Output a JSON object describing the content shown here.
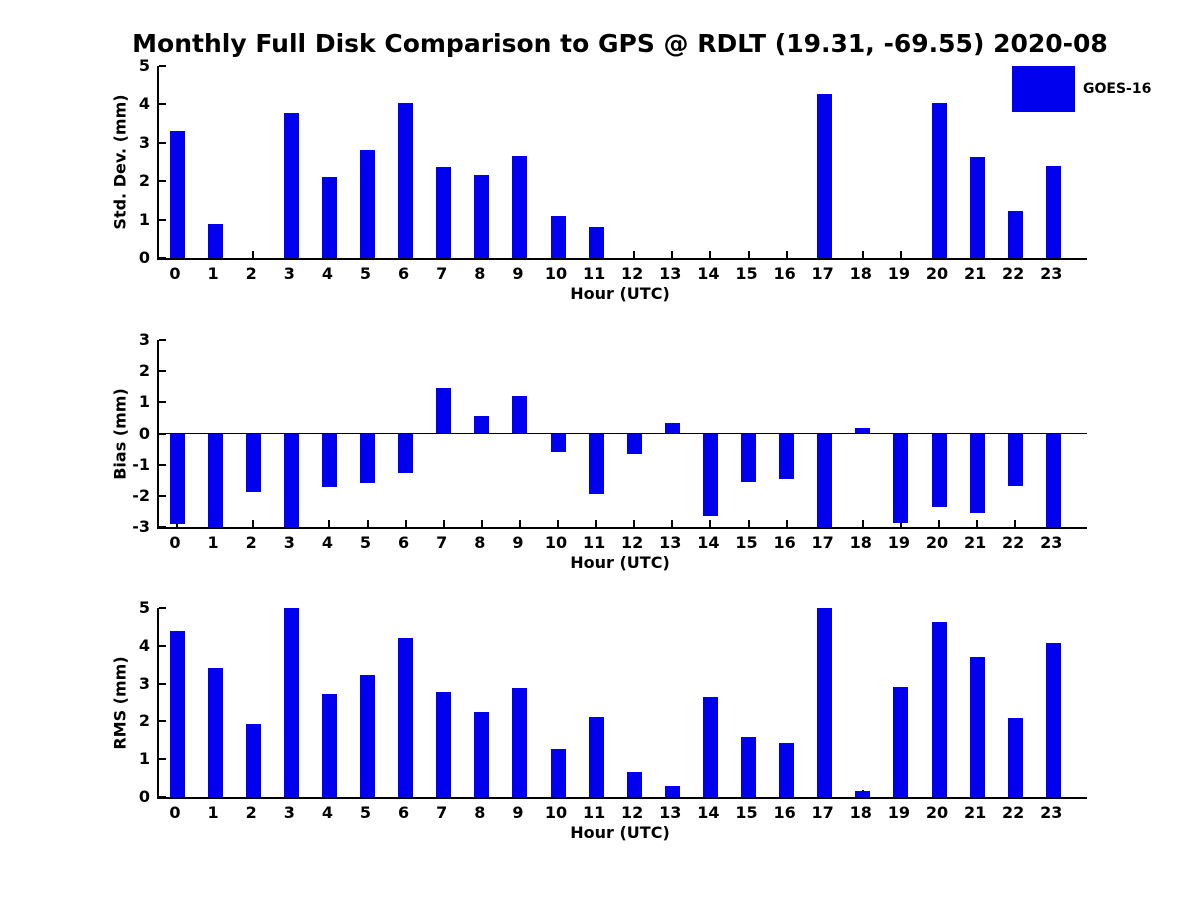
{
  "title": "Monthly Full Disk Comparison to GPS @ RDLT (19.31, -69.55) 2020-08",
  "legend": {
    "label": "GOES-16",
    "swatch_color": "#0000ee"
  },
  "colors": {
    "bar": "#0000ee",
    "axis": "#000000",
    "text": "#000000",
    "background": "#ffffff"
  },
  "chart_data": [
    {
      "type": "bar",
      "series_name": "GOES-16",
      "ylabel": "Std. Dev. (mm)",
      "xlabel": "Hour (UTC)",
      "categories": [
        "0",
        "1",
        "2",
        "3",
        "4",
        "5",
        "6",
        "7",
        "8",
        "9",
        "10",
        "11",
        "12",
        "13",
        "14",
        "15",
        "16",
        "17",
        "18",
        "19",
        "20",
        "21",
        "22",
        "23"
      ],
      "values": [
        3.3,
        0.88,
        0,
        3.77,
        2.12,
        2.8,
        4.03,
        2.37,
        2.17,
        2.65,
        1.1,
        0.82,
        0,
        0,
        0,
        0,
        0,
        4.27,
        0,
        0,
        4.03,
        2.63,
        1.23,
        2.4
      ],
      "ylim": [
        0,
        5
      ],
      "yticks": [
        0,
        1,
        2,
        3,
        4,
        5
      ],
      "grid": false,
      "zero_line": false,
      "legend_position": "upper-right"
    },
    {
      "type": "bar",
      "series_name": "GOES-16",
      "ylabel": "Bias (mm)",
      "xlabel": "Hour (UTC)",
      "categories": [
        "0",
        "1",
        "2",
        "3",
        "4",
        "5",
        "6",
        "7",
        "8",
        "9",
        "10",
        "11",
        "12",
        "13",
        "14",
        "15",
        "16",
        "17",
        "18",
        "19",
        "20",
        "21",
        "22",
        "23"
      ],
      "values": [
        -2.9,
        -3.0,
        -1.88,
        -3.0,
        -1.71,
        -1.6,
        -1.26,
        1.45,
        0.55,
        1.2,
        -0.6,
        -1.95,
        -0.65,
        0.35,
        -2.66,
        -1.57,
        -1.45,
        -3.0,
        0.17,
        -2.87,
        -2.35,
        -2.55,
        -1.7,
        -3.0
      ],
      "ylim": [
        -3,
        3
      ],
      "yticks": [
        -3,
        -2,
        -1,
        0,
        1,
        2,
        3
      ],
      "grid": false,
      "zero_line": true,
      "legend_position": "none"
    },
    {
      "type": "bar",
      "series_name": "GOES-16",
      "ylabel": "RMS (mm)",
      "xlabel": "Hour (UTC)",
      "categories": [
        "0",
        "1",
        "2",
        "3",
        "4",
        "5",
        "6",
        "7",
        "8",
        "9",
        "10",
        "11",
        "12",
        "13",
        "14",
        "15",
        "16",
        "17",
        "18",
        "19",
        "20",
        "21",
        "22",
        "23"
      ],
      "values": [
        4.4,
        3.4,
        1.93,
        5.0,
        2.72,
        3.22,
        4.21,
        2.78,
        2.25,
        2.88,
        1.26,
        2.12,
        0.65,
        0.3,
        2.65,
        1.58,
        1.44,
        5.0,
        0.15,
        2.9,
        4.62,
        3.7,
        2.1,
        4.07
      ],
      "ylim": [
        0,
        5
      ],
      "yticks": [
        0,
        1,
        2,
        3,
        4,
        5
      ],
      "grid": false,
      "zero_line": false,
      "legend_position": "none"
    }
  ]
}
